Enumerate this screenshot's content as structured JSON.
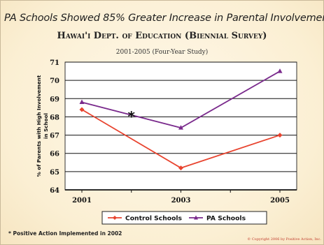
{
  "headline": "PA Schools Showed 85% Greater Increase in Parental Involvement",
  "subtitle": "Hawai'i Dept. of Education (Biennial Survey)",
  "study_period": "2001-2005 (Four-Year Study)",
  "footnote": "* Positive Action Implemented in 2002",
  "copyright": "© Copyright 2006 by Positive Action, Inc.",
  "colors": {
    "control": "#e8442f",
    "pa": "#7a2a8c",
    "grid": "#111111",
    "plot_bg": "#ffffff"
  },
  "chart_data": {
    "type": "line",
    "categories": [
      "2001",
      "2003",
      "2005"
    ],
    "x": [
      2001,
      2003,
      2005
    ],
    "ylabel": "% of Parents with High Involvement in School",
    "ylim": [
      64,
      71
    ],
    "yticks": [
      "64",
      "65",
      "66",
      "67",
      "68",
      "69",
      "70",
      "71"
    ],
    "grid": true,
    "legend_position": "bottom",
    "series": [
      {
        "name": "Control Schools",
        "values": [
          68.4,
          65.2,
          67.0
        ],
        "color": "#e8442f",
        "marker": "diamond"
      },
      {
        "name": "PA Schools",
        "values": [
          68.8,
          67.4,
          70.5
        ],
        "color": "#7a2a8c",
        "marker": "triangle"
      }
    ],
    "annotations": [
      {
        "text": "*",
        "x": 2002,
        "y": 68.1
      }
    ]
  }
}
